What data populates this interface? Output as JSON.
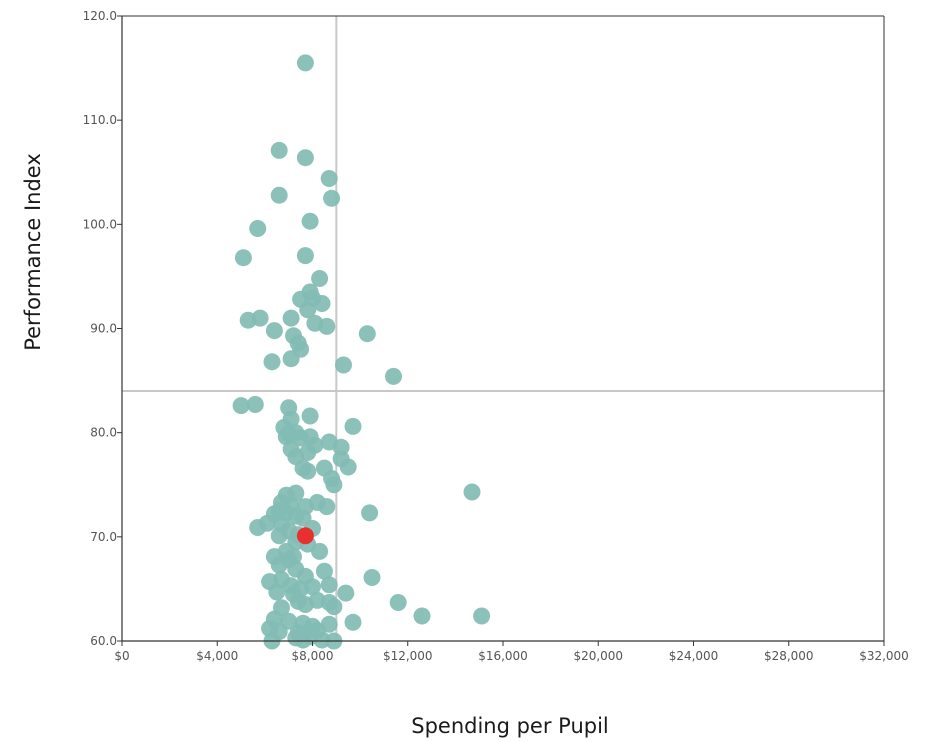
{
  "chart_data": {
    "type": "scatter",
    "title": "",
    "xlabel": "Spending per Pupil",
    "ylabel": "Performance Index",
    "xlim": [
      0,
      32000
    ],
    "ylim": [
      60,
      120
    ],
    "x_ticks": [
      {
        "value": 0,
        "label": "$0"
      },
      {
        "value": 4000,
        "label": "$4,000"
      },
      {
        "value": 8000,
        "label": "$8,000"
      },
      {
        "value": 12000,
        "label": "$12,000"
      },
      {
        "value": 16000,
        "label": "$16,000"
      },
      {
        "value": 20000,
        "label": "$20,000"
      },
      {
        "value": 24000,
        "label": "$24,000"
      },
      {
        "value": 28000,
        "label": "$28,000"
      },
      {
        "value": 32000,
        "label": "$32,000"
      }
    ],
    "y_ticks": [
      {
        "value": 60,
        "label": "60.0"
      },
      {
        "value": 70,
        "label": "70.0"
      },
      {
        "value": 80,
        "label": "80.0"
      },
      {
        "value": 90,
        "label": "90.0"
      },
      {
        "value": 100,
        "label": "100.0"
      },
      {
        "value": 110,
        "label": "110.0"
      },
      {
        "value": 120,
        "label": "120.0"
      }
    ],
    "reference_lines": {
      "x": 9000,
      "y": 84
    },
    "grid": false,
    "colors": {
      "point": "#82bcb4",
      "highlight": "#e8312f",
      "reference": "#c8c8c8",
      "axis": "#333333"
    },
    "points": [
      [
        7700,
        115.5
      ],
      [
        6600,
        107.1
      ],
      [
        7700,
        106.4
      ],
      [
        8700,
        104.4
      ],
      [
        6600,
        102.8
      ],
      [
        8800,
        102.5
      ],
      [
        7900,
        100.3
      ],
      [
        5700,
        99.6
      ],
      [
        5100,
        96.8
      ],
      [
        7700,
        97.0
      ],
      [
        8300,
        94.8
      ],
      [
        7900,
        93.5
      ],
      [
        8000,
        92.9
      ],
      [
        7500,
        92.8
      ],
      [
        8400,
        92.4
      ],
      [
        7800,
        91.8
      ],
      [
        5300,
        90.8
      ],
      [
        5800,
        91.0
      ],
      [
        7100,
        91.0
      ],
      [
        8100,
        90.5
      ],
      [
        8600,
        90.2
      ],
      [
        6400,
        89.8
      ],
      [
        7200,
        89.3
      ],
      [
        10300,
        89.5
      ],
      [
        7400,
        88.6
      ],
      [
        7500,
        88.0
      ],
      [
        9300,
        86.5
      ],
      [
        6300,
        86.8
      ],
      [
        7100,
        87.1
      ],
      [
        11400,
        85.4
      ],
      [
        5000,
        82.6
      ],
      [
        5600,
        82.7
      ],
      [
        7000,
        82.4
      ],
      [
        7100,
        81.3
      ],
      [
        7900,
        81.6
      ],
      [
        9700,
        80.6
      ],
      [
        6800,
        80.5
      ],
      [
        7000,
        79.9
      ],
      [
        7300,
        80.0
      ],
      [
        6900,
        79.6
      ],
      [
        7500,
        79.5
      ],
      [
        7900,
        79.6
      ],
      [
        8700,
        79.1
      ],
      [
        8100,
        78.8
      ],
      [
        9200,
        78.6
      ],
      [
        7100,
        78.4
      ],
      [
        7800,
        78.1
      ],
      [
        7300,
        77.7
      ],
      [
        9200,
        77.5
      ],
      [
        8500,
        76.6
      ],
      [
        7600,
        76.6
      ],
      [
        7800,
        76.3
      ],
      [
        9500,
        76.7
      ],
      [
        8800,
        75.6
      ],
      [
        8900,
        75.0
      ],
      [
        7300,
        74.2
      ],
      [
        6900,
        74.0
      ],
      [
        6700,
        73.3
      ],
      [
        7100,
        73.0
      ],
      [
        7700,
        72.9
      ],
      [
        8200,
        73.3
      ],
      [
        8600,
        72.9
      ],
      [
        6600,
        72.5
      ],
      [
        6900,
        72.3
      ],
      [
        6400,
        72.2
      ],
      [
        7300,
        72.0
      ],
      [
        7600,
        71.8
      ],
      [
        6100,
        71.3
      ],
      [
        6700,
        71.2
      ],
      [
        7000,
        70.6
      ],
      [
        7400,
        70.2
      ],
      [
        8000,
        70.8
      ],
      [
        5700,
        70.9
      ],
      [
        6600,
        70.1
      ],
      [
        10400,
        72.3
      ],
      [
        14700,
        74.3
      ],
      [
        7300,
        69.5
      ],
      [
        7800,
        69.3
      ],
      [
        6900,
        68.6
      ],
      [
        7200,
        68.1
      ],
      [
        6400,
        68.1
      ],
      [
        8300,
        68.6
      ],
      [
        7000,
        67.8
      ],
      [
        6600,
        67.3
      ],
      [
        7300,
        66.9
      ],
      [
        8500,
        66.7
      ],
      [
        7700,
        66.2
      ],
      [
        6700,
        65.9
      ],
      [
        6200,
        65.7
      ],
      [
        7100,
        65.3
      ],
      [
        7500,
        65.0
      ],
      [
        8000,
        65.2
      ],
      [
        8700,
        65.4
      ],
      [
        6500,
        64.7
      ],
      [
        7200,
        64.5
      ],
      [
        9400,
        64.6
      ],
      [
        10500,
        66.1
      ],
      [
        7400,
        63.8
      ],
      [
        7700,
        63.5
      ],
      [
        8200,
        63.9
      ],
      [
        8700,
        63.7
      ],
      [
        6700,
        63.2
      ],
      [
        8900,
        63.3
      ],
      [
        11600,
        63.7
      ],
      [
        12600,
        62.4
      ],
      [
        15100,
        62.4
      ],
      [
        6400,
        62.1
      ],
      [
        7000,
        61.9
      ],
      [
        7600,
        61.7
      ],
      [
        8000,
        61.4
      ],
      [
        8700,
        61.6
      ],
      [
        9700,
        61.8
      ],
      [
        6200,
        61.2
      ],
      [
        6600,
        60.9
      ],
      [
        7400,
        60.8
      ],
      [
        8200,
        61.0
      ],
      [
        7300,
        60.3
      ],
      [
        7600,
        60.1
      ],
      [
        8400,
        60.1
      ],
      [
        8900,
        60.0
      ],
      [
        6300,
        60.0
      ],
      [
        7900,
        60.4
      ]
    ],
    "highlight_point": [
      7700,
      70.1
    ]
  }
}
